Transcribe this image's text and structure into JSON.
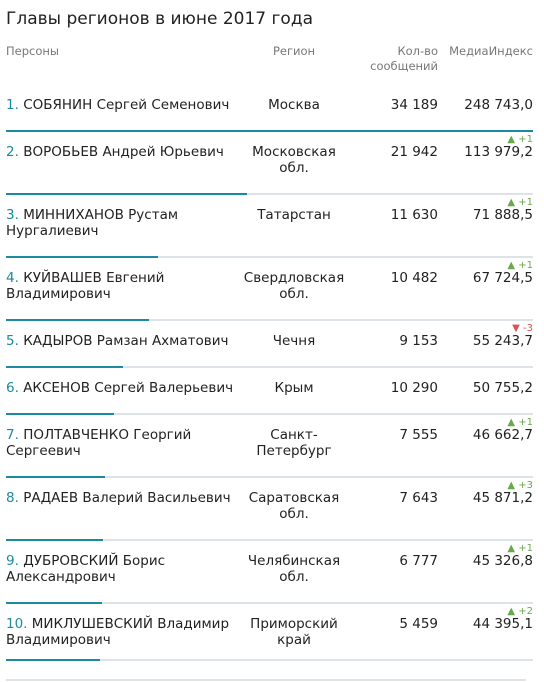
{
  "title": "Главы регионов в июне 2017 года",
  "header": {
    "persons": "Персоны",
    "region": "Регион",
    "count": "Кол-во сообщений",
    "media": "МедиаИндекс"
  },
  "colors": {
    "accent": "#1c8aa0",
    "up": "#6aa84f",
    "down": "#d9534f"
  },
  "rows": [
    {
      "num": "1.",
      "name": "СОБЯНИН Сергей Семенович",
      "region": "Москва",
      "count": "34 189",
      "media": "248 743,0",
      "delta": "",
      "delta_dir": "",
      "share": 1.0
    },
    {
      "num": "2.",
      "name": "ВОРОБЬЕВ Андрей Юрьевич",
      "region": "Московская обл.",
      "count": "21 942",
      "media": "113 979,2",
      "delta": "▲ +1",
      "delta_dir": "up",
      "share": 0.458
    },
    {
      "num": "3.",
      "name": "МИННИХАНОВ Рустам Нургалиевич",
      "region": "Татарстан",
      "count": "11 630",
      "media": "71 888,5",
      "delta": "▲ +1",
      "delta_dir": "up",
      "share": 0.289
    },
    {
      "num": "4.",
      "name": "КУЙВАШЕВ Евгений Владимирович",
      "region": "Свердловская обл.",
      "count": "10 482",
      "media": "67 724,5",
      "delta": "▲ +1",
      "delta_dir": "up",
      "share": 0.272
    },
    {
      "num": "5.",
      "name": "КАДЫРОВ Рамзан Ахматович",
      "region": "Чечня",
      "count": "9 153",
      "media": "55 243,7",
      "delta": "▼ -3",
      "delta_dir": "down",
      "share": 0.222
    },
    {
      "num": "6.",
      "name": "АКСЕНОВ Сергей Валерьевич",
      "region": "Крым",
      "count": "10 290",
      "media": "50 755,2",
      "delta": "",
      "delta_dir": "",
      "share": 0.204
    },
    {
      "num": "7.",
      "name": "ПОЛТАВЧЕНКО Георгий Сергеевич",
      "region": "Санкт-Петербург",
      "count": "7 555",
      "media": "46 662,7",
      "delta": "▲ +1",
      "delta_dir": "up",
      "share": 0.188
    },
    {
      "num": "8.",
      "name": "РАДАЕВ Валерий Васильевич",
      "region": "Саратовская обл.",
      "count": "7 643",
      "media": "45 871,2",
      "delta": "▲ +3",
      "delta_dir": "up",
      "share": 0.184
    },
    {
      "num": "9.",
      "name": "ДУБРОВСКИЙ Борис Александрович",
      "region": "Челябинская обл.",
      "count": "6 777",
      "media": "45 326,8",
      "delta": "▲ +1",
      "delta_dir": "up",
      "share": 0.182
    },
    {
      "num": "10.",
      "name": "МИКЛУШЕВСКИЙ Владимир Владимирович",
      "region": "Приморский край",
      "count": "5 459",
      "media": "44 395,1",
      "delta": "▲ +2",
      "delta_dir": "up",
      "share": 0.178
    }
  ]
}
